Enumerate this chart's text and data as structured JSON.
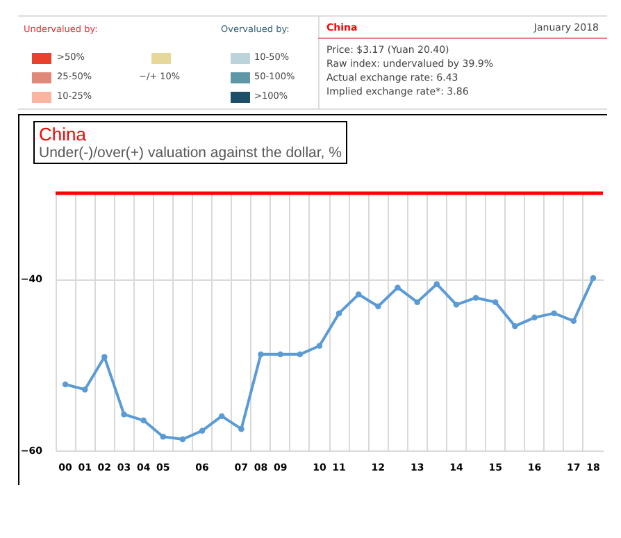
{
  "chart_data": {
    "type": "line",
    "title": "China",
    "subtitle": "Under(-)/over(+) valuation against the dollar, %",
    "categories": [
      "00",
      "01",
      "02",
      "03",
      "04",
      "05",
      null,
      "06",
      null,
      "07",
      "08",
      "09",
      null,
      "10",
      "11",
      null,
      "12",
      null,
      "13",
      null,
      "14",
      null,
      "15",
      null,
      "16",
      null,
      "17",
      "18"
    ],
    "series": [
      {
        "color": "#5b9bd5",
        "values": [
          -52.3,
          -52.9,
          -49.1,
          -55.8,
          -56.5,
          -58.4,
          -58.7,
          -57.7,
          -56.0,
          -57.5,
          -48.8,
          -48.8,
          -48.8,
          -47.8,
          -44.0,
          -41.8,
          -43.2,
          -41.0,
          -42.7,
          -40.6,
          -43.0,
          -42.2,
          -42.7,
          -45.5,
          -44.5,
          -44.0,
          -44.9,
          -39.9
        ]
      }
    ],
    "ylim": [
      -60,
      -30
    ],
    "yticks": [
      -60,
      -40
    ],
    "grid": true,
    "marker": "circle",
    "line_style": "solid",
    "ref_lines": [
      {
        "axis": "y",
        "value": -30,
        "color": "#ff0000"
      }
    ],
    "annotations": [
      "Undervalued by:",
      ">50%",
      "25-50%",
      "10-25%",
      "−/+ 10%",
      "Overvalued by:",
      "10-50%",
      "50-100%",
      ">100%",
      "China",
      "January 2018",
      "Price: $3.17 (Yuan 20.40)",
      "Raw index: undervalued by 39.9%",
      "Actual exchange rate: 6.43",
      "Implied exchange rate*: 3.86"
    ]
  }
}
